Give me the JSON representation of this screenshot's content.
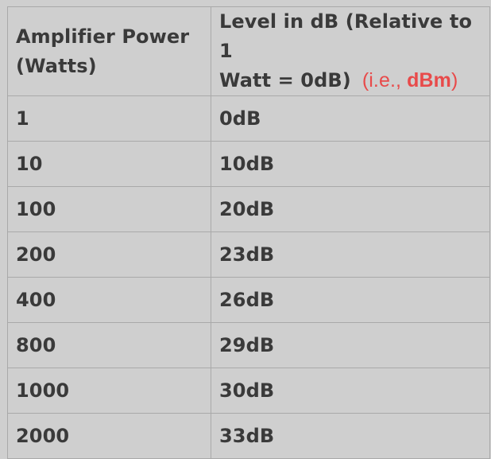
{
  "table": {
    "headers": {
      "power_line1": "Amplifier Power",
      "power_line2": "(Watts)",
      "level_line1": "Level in dB (Relative to 1",
      "level_line2": "Watt = 0dB)",
      "note_open": "(i.e., ",
      "note_bold": "dBm",
      "note_close": ")"
    },
    "rows": [
      {
        "power": "1",
        "level": "0dB"
      },
      {
        "power": "10",
        "level": "10dB"
      },
      {
        "power": "100",
        "level": "20dB"
      },
      {
        "power": "200",
        "level": "23dB"
      },
      {
        "power": "400",
        "level": "26dB"
      },
      {
        "power": "800",
        "level": "29dB"
      },
      {
        "power": "1000",
        "level": "30dB"
      },
      {
        "power": "2000",
        "level": "33dB"
      }
    ]
  },
  "colors": {
    "background": "#cfcfcf",
    "text": "#3a3a3a",
    "note": "#e84a4a",
    "border": "#a9a9a9"
  }
}
